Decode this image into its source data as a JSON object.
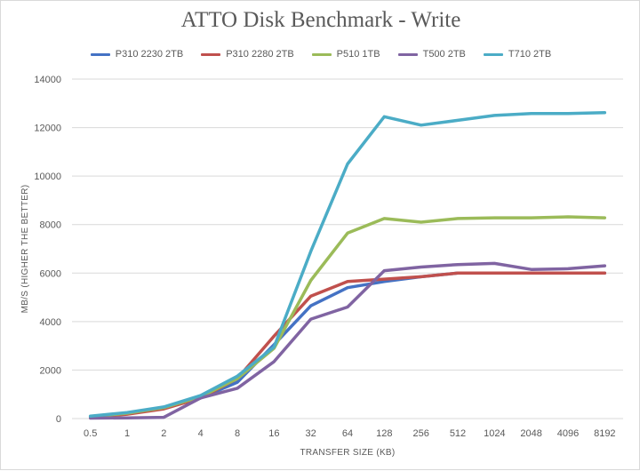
{
  "colors": {
    "background": "#ffffff",
    "gridline": "#d9d9d9",
    "text": "#595959",
    "P310 2230 2TB": "#4472c4",
    "P310 2280 2TB": "#c0504d",
    "P510 1TB": "#9bbb59",
    "T500 2TB": "#8064a2",
    "T710 2TB": "#4bacc6"
  },
  "chart_data": {
    "type": "line",
    "title": "ATTO Disk Benchmark - Write",
    "xlabel": "TRANSFER SIZE (KB)",
    "ylabel": "MB/S (HIGHER THE BETTER)",
    "ylim": [
      0,
      14000
    ],
    "yticks": [
      "0",
      "2000",
      "4000",
      "6000",
      "8000",
      "10000",
      "12000",
      "14000"
    ],
    "grid": true,
    "legend_position": "top",
    "categories": [
      "0.5",
      "1",
      "2",
      "4",
      "8",
      "16",
      "32",
      "64",
      "128",
      "256",
      "512",
      "1024",
      "2048",
      "4096",
      "8192"
    ],
    "series": [
      {
        "name": "P310 2230 2TB",
        "values": [
          80,
          200,
          420,
          850,
          1500,
          3050,
          4650,
          5400,
          5650,
          5850,
          6000,
          6000,
          6000,
          6000,
          6000
        ]
      },
      {
        "name": "P310 2280 2TB",
        "values": [
          60,
          180,
          400,
          850,
          1650,
          3400,
          5050,
          5650,
          5750,
          5850,
          6000,
          6000,
          6000,
          6000,
          6000
        ]
      },
      {
        "name": "P510 1TB",
        "values": [
          80,
          220,
          450,
          900,
          1650,
          2900,
          5700,
          7650,
          8250,
          8100,
          8250,
          8280,
          8280,
          8320,
          8280
        ]
      },
      {
        "name": "T500 2TB",
        "values": [
          20,
          30,
          50,
          850,
          1250,
          2350,
          4100,
          4600,
          6100,
          6250,
          6350,
          6400,
          6150,
          6180,
          6300
        ]
      },
      {
        "name": "T710 2TB",
        "values": [
          100,
          250,
          480,
          950,
          1750,
          2950,
          6900,
          10500,
          12450,
          12100,
          12300,
          12500,
          12580,
          12580,
          12620
        ]
      }
    ]
  }
}
